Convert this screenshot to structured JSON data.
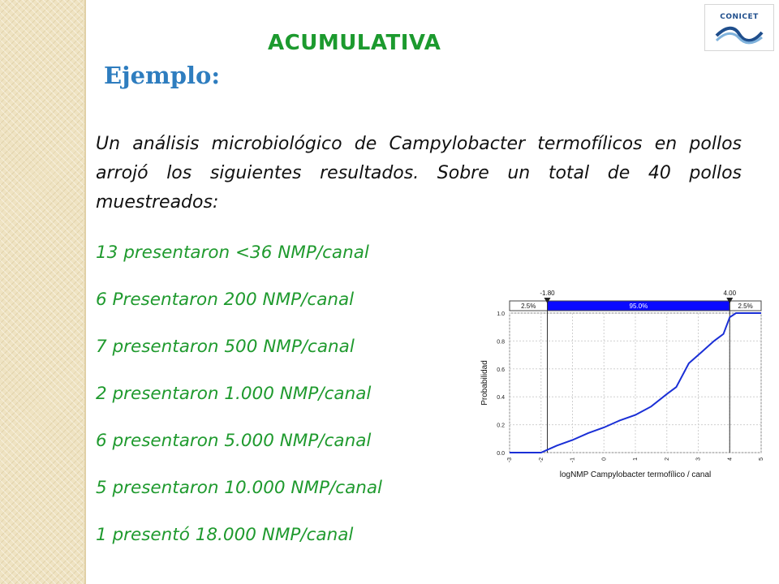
{
  "logo": {
    "text": "CONICET"
  },
  "slide": {
    "title": "ACUMULATIVA",
    "subtitle": "Ejemplo:",
    "intro": "Un análisis microbiológico de Campylobacter termofílicos en pollos arrojó los siguientes resultados. Sobre un total de 40 pollos muestreados:",
    "results": [
      "13 presentaron <36 NMP/canal",
      "6 Presentaron 200 NMP/canal",
      "7 presentaron 500 NMP/canal",
      "2 presentaron 1.000 NMP/canal",
      "6 presentaron 5.000 NMP/canal",
      "5 presentaron 10.000 NMP/canal",
      "1 presentó 18.000 NMP/canal"
    ]
  },
  "colors": {
    "title": "#1c9a2e",
    "subtitle": "#2e7dbf",
    "results": "#1f9a2e",
    "curve": "#1a2fd6",
    "band": "#0a0aff"
  },
  "chart_data": {
    "type": "line",
    "xlabel": "logNMP Campylobacter termofílico / canal",
    "ylabel": "Probabilidad",
    "xlim": [
      -3,
      5
    ],
    "ylim": [
      0,
      1.0
    ],
    "xticks": [
      "-3",
      "-2",
      "-1",
      "0",
      "1",
      "2",
      "3",
      "4",
      "5"
    ],
    "yticks": [
      "0.0",
      "0.2",
      "0.4",
      "0.6",
      "0.8",
      "1.0"
    ],
    "grid": true,
    "markers": [
      {
        "x": -1.8,
        "label": "-1.80"
      },
      {
        "x": 4.0,
        "label": "4.00"
      }
    ],
    "band_labels": [
      "2.5%",
      "95.0%",
      "2.5%"
    ],
    "series": [
      {
        "x": [
          -3,
          -2,
          -1.8,
          -1.5,
          -1,
          -0.5,
          0,
          0.5,
          1,
          1.5,
          2,
          2.3,
          2.7,
          3.1,
          3.5,
          3.8,
          4.0,
          4.2,
          5
        ],
        "y": [
          0,
          0,
          0.02,
          0.05,
          0.09,
          0.14,
          0.18,
          0.23,
          0.27,
          0.33,
          0.42,
          0.47,
          0.64,
          0.72,
          0.8,
          0.85,
          0.97,
          1.0,
          1.0
        ]
      }
    ]
  }
}
